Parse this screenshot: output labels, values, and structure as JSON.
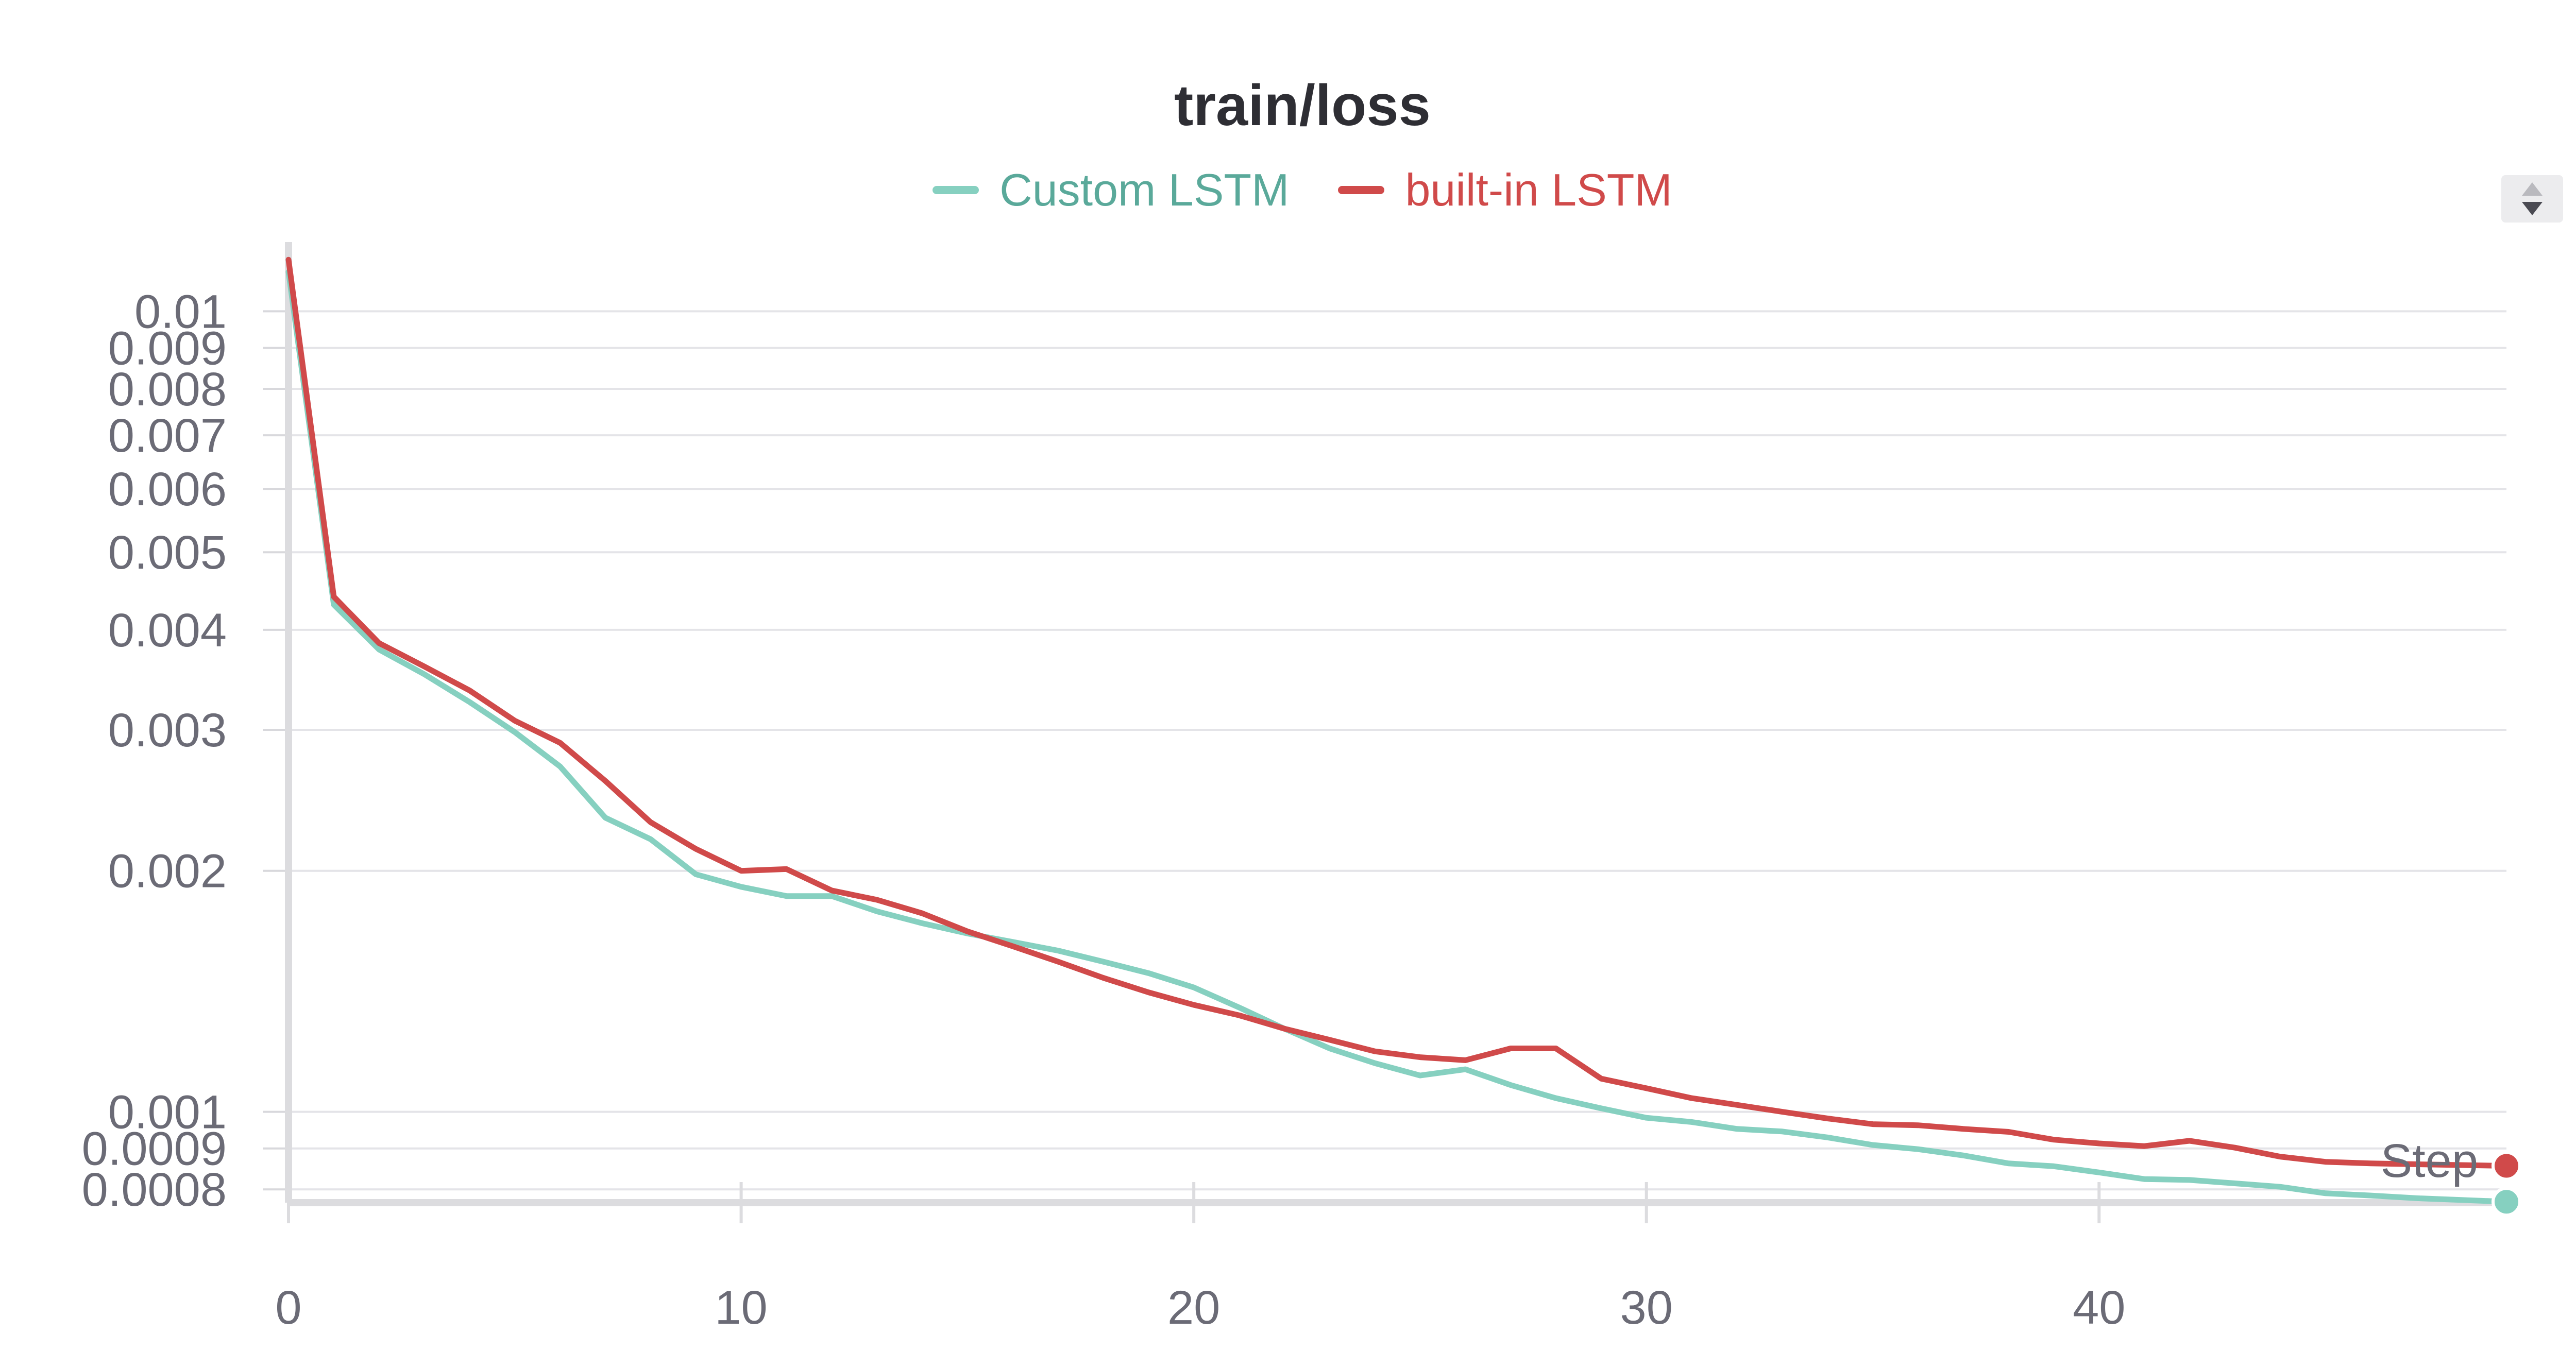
{
  "chart_data": {
    "type": "line",
    "title": "train/loss",
    "xlabel": "Step",
    "ylabel": "",
    "yscale": "log",
    "xlim": [
      0,
      49
    ],
    "ylim": [
      0.00077,
      0.0115
    ],
    "grid": true,
    "legend_position": "top-center",
    "x_ticks": [
      "0",
      "10",
      "20",
      "30",
      "40"
    ],
    "y_ticks": [
      {
        "value": 0.01,
        "label": "0.01"
      },
      {
        "value": 0.009,
        "label": "0.009"
      },
      {
        "value": 0.008,
        "label": "0.008"
      },
      {
        "value": 0.007,
        "label": "0.007"
      },
      {
        "value": 0.006,
        "label": "0.006"
      },
      {
        "value": 0.005,
        "label": "0.005"
      },
      {
        "value": 0.004,
        "label": "0.004"
      },
      {
        "value": 0.003,
        "label": "0.003"
      },
      {
        "value": 0.002,
        "label": "0.002"
      },
      {
        "value": 0.001,
        "label": "0.001"
      },
      {
        "value": 0.0009,
        "label": "0.0009"
      },
      {
        "value": 0.0008,
        "label": "0.0008"
      }
    ],
    "series": [
      {
        "name": "Custom LSTM",
        "color": "#86d0c0",
        "x": [
          0,
          1,
          2,
          3,
          4,
          5,
          6,
          7,
          8,
          9,
          10,
          11,
          12,
          13,
          14,
          15,
          16,
          17,
          18,
          19,
          20,
          21,
          22,
          23,
          24,
          25,
          26,
          27,
          28,
          29,
          30,
          31,
          32,
          33,
          34,
          35,
          36,
          37,
          38,
          39,
          40,
          41,
          42,
          43,
          44,
          45,
          46,
          47,
          48,
          49
        ],
        "values": [
          0.0112,
          0.0043,
          0.00378,
          0.00352,
          0.00325,
          0.00298,
          0.0027,
          0.00233,
          0.00219,
          0.00198,
          0.00191,
          0.00186,
          0.00186,
          0.00178,
          0.00172,
          0.00167,
          0.00163,
          0.00159,
          0.00154,
          0.00149,
          0.00143,
          0.00135,
          0.00127,
          0.0012,
          0.00115,
          0.00111,
          0.00113,
          0.00108,
          0.00104,
          0.00101,
          0.000983,
          0.000971,
          0.000952,
          0.000945,
          0.000929,
          0.000909,
          0.000898,
          0.000882,
          0.000862,
          0.000855,
          0.00084,
          0.000824,
          0.000822,
          0.000814,
          0.000806,
          0.000791,
          0.000786,
          0.00078,
          0.000776,
          0.000772
        ]
      },
      {
        "name": "built-in LSTM",
        "color": "#d04a4a",
        "x": [
          0,
          1,
          2,
          3,
          4,
          5,
          6,
          7,
          8,
          9,
          10,
          11,
          12,
          13,
          14,
          15,
          16,
          17,
          18,
          19,
          20,
          21,
          22,
          23,
          24,
          25,
          26,
          27,
          28,
          29,
          30,
          31,
          32,
          33,
          34,
          35,
          36,
          37,
          38,
          39,
          40,
          41,
          42,
          43,
          44,
          45,
          46,
          47,
          48,
          49
        ],
        "values": [
          0.0116,
          0.0044,
          0.00385,
          0.0036,
          0.00336,
          0.00308,
          0.00289,
          0.00259,
          0.0023,
          0.00213,
          0.002,
          0.00201,
          0.00189,
          0.00184,
          0.00177,
          0.00168,
          0.00161,
          0.00154,
          0.00147,
          0.00141,
          0.00136,
          0.00132,
          0.00127,
          0.00123,
          0.00119,
          0.00117,
          0.00116,
          0.0012,
          0.0012,
          0.0011,
          0.00107,
          0.00104,
          0.00102,
          0.001,
          0.000981,
          0.000965,
          0.000962,
          0.000952,
          0.000944,
          0.000923,
          0.000913,
          0.000906,
          0.00092,
          0.000902,
          0.000879,
          0.000866,
          0.000862,
          0.00086,
          0.000858,
          0.000856
        ]
      }
    ]
  }
}
